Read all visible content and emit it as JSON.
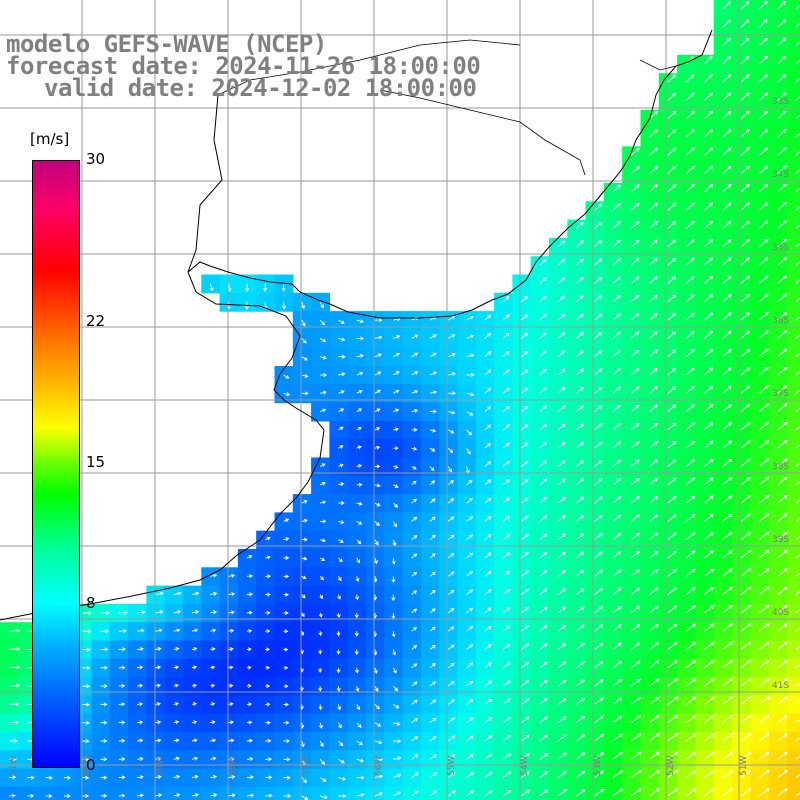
{
  "title": {
    "line1": "modelo GEFS-WAVE (NCEP)",
    "line2": "forecast date: 2024-11-26 18:00:00",
    "line3": "valid date: 2024-12-02 18:00:00"
  },
  "colorbar": {
    "units": "[m/s]",
    "ticks": [
      "30",
      "22",
      "15",
      "8",
      "0"
    ],
    "tick_values": [
      30,
      22,
      15,
      8,
      0
    ],
    "min": 0,
    "max": 30
  },
  "map": {
    "lat_labels": [
      "33S",
      "34S",
      "35S",
      "36S",
      "37S",
      "38S",
      "39S",
      "40S",
      "41S"
    ],
    "lon_labels": [
      "61W",
      "60W",
      "59W",
      "58W",
      "57W",
      "56W",
      "55W",
      "54W",
      "53W",
      "52W",
      "51W"
    ],
    "colors": {
      "land": "#ffffff",
      "grid": "#9a9a9a",
      "coast": "#000000",
      "title": "#808080",
      "arrows": "#ffffff"
    }
  }
}
